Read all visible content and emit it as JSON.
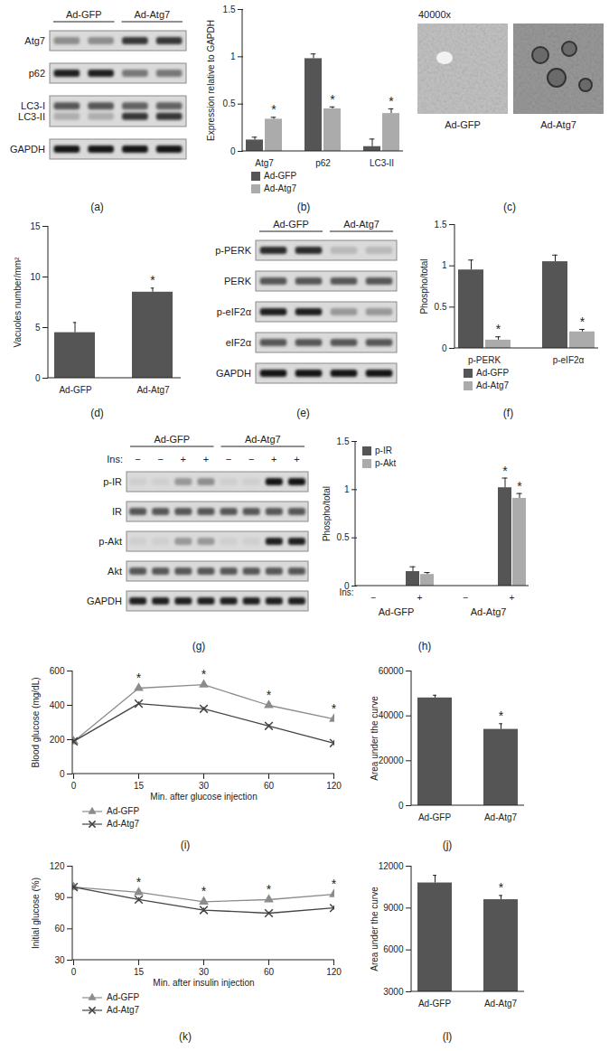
{
  "chart_data": [
    {
      "panel": "(b)",
      "type": "bar",
      "categories": [
        "Atg7",
        "p62",
        "LC3-II"
      ],
      "ylabel": "Expression relative to GAPDH",
      "ylim": [
        0,
        1.5
      ],
      "yticks": [
        0,
        0.5,
        1,
        1.5
      ],
      "legend": "bottom",
      "series": [
        {
          "name": "Ad-GFP",
          "color": "#555555",
          "values": [
            0.12,
            0.98,
            0.05
          ],
          "errors": [
            0.03,
            0.05,
            0.08
          ],
          "annotations": [
            null,
            null,
            null
          ]
        },
        {
          "name": "Ad-Atg7",
          "color": "#ababab",
          "values": [
            0.34,
            0.45,
            0.4
          ],
          "errors": [
            0.02,
            0.02,
            0.05
          ],
          "annotations": [
            "*",
            "*",
            "*"
          ]
        }
      ]
    },
    {
      "panel": "(d)",
      "type": "bar",
      "categories": [
        "Ad-GFP",
        "Ad-Atg7"
      ],
      "ylabel": "Vacuoles number/mm²",
      "ylim": [
        0,
        15
      ],
      "yticks": [
        0,
        5,
        10,
        15
      ],
      "color": "#555555",
      "values": [
        4.5,
        8.5
      ],
      "errors": [
        1.0,
        0.4
      ],
      "annotations": [
        null,
        "*"
      ]
    },
    {
      "panel": "(f)",
      "type": "bar",
      "categories": [
        "p-PERK",
        "p-eIF2α"
      ],
      "ylabel": "Phospho/total",
      "ylim": [
        0,
        1.5
      ],
      "yticks": [
        0,
        0.5,
        1,
        1.5
      ],
      "legend": "bottom",
      "series": [
        {
          "name": "Ad-GFP",
          "color": "#555555",
          "values": [
            0.95,
            1.05
          ],
          "errors": [
            0.12,
            0.08
          ],
          "annotations": [
            null,
            null
          ]
        },
        {
          "name": "Ad-Atg7",
          "color": "#ababab",
          "values": [
            0.1,
            0.2
          ],
          "errors": [
            0.04,
            0.03
          ],
          "annotations": [
            "*",
            "*"
          ]
        }
      ]
    },
    {
      "panel": "(h)",
      "type": "bar",
      "categories": [
        "−",
        "+",
        "−",
        "+"
      ],
      "xlabel": "Ins:",
      "groups": [
        "Ad-GFP",
        "Ad-Atg7"
      ],
      "ylabel": "Phospho/total",
      "ylim": [
        0,
        1.5
      ],
      "yticks": [
        0,
        0.5,
        1,
        1.5
      ],
      "legend": "top-left",
      "series": [
        {
          "name": "p-IR",
          "color": "#555555",
          "values": [
            0,
            0.15,
            0,
            1.02
          ],
          "errors": [
            0,
            0.05,
            0,
            0.1
          ],
          "annotations": [
            null,
            null,
            null,
            "*"
          ]
        },
        {
          "name": "p-Akt",
          "color": "#ababab",
          "values": [
            0,
            0.12,
            0,
            0.91
          ],
          "errors": [
            0,
            0.02,
            0,
            0.05
          ],
          "annotations": [
            null,
            null,
            null,
            "*"
          ]
        }
      ]
    },
    {
      "panel": "(i)",
      "type": "line",
      "categories": [
        "0",
        "15",
        "30",
        "60",
        "120"
      ],
      "xlabel": "Min. after glucose injection",
      "ylabel": "Blood glucose (mg/dL)",
      "ylim": [
        0,
        600
      ],
      "yticks": [
        0,
        200,
        400,
        600
      ],
      "legend": "bottom",
      "series": [
        {
          "name": "Ad-GFP",
          "color": "#8c8c8c",
          "marker": "triangle",
          "values": [
            190,
            500,
            520,
            400,
            320
          ],
          "errors": [
            8,
            12,
            10,
            12,
            14
          ],
          "annotations": [
            null,
            "*",
            "*",
            "*",
            "*"
          ]
        },
        {
          "name": "Ad-Atg7",
          "color": "#444444",
          "marker": "times",
          "values": [
            190,
            410,
            380,
            280,
            180
          ],
          "errors": [
            8,
            10,
            8,
            8,
            15
          ],
          "annotations": [
            null,
            null,
            null,
            null,
            null
          ]
        }
      ]
    },
    {
      "panel": "(j)",
      "type": "bar",
      "categories": [
        "Ad-GFP",
        "Ad-Atg7"
      ],
      "ylabel": "Area under the curve",
      "ylim": [
        0,
        60000
      ],
      "yticks": [
        0,
        20000,
        40000,
        60000
      ],
      "color": "#555555",
      "values": [
        48000,
        34000
      ],
      "errors": [
        1200,
        2500
      ],
      "annotations": [
        null,
        "*"
      ]
    },
    {
      "panel": "(k)",
      "type": "line",
      "categories": [
        "0",
        "15",
        "30",
        "60",
        "120"
      ],
      "xlabel": "Min. after insulin injection",
      "ylabel": "Initial glucose (%)",
      "ylim": [
        30,
        120
      ],
      "yticks": [
        30,
        60,
        90,
        120
      ],
      "legend": "bottom",
      "series": [
        {
          "name": "Ad-GFP",
          "color": "#8c8c8c",
          "marker": "triangle",
          "values": [
            100,
            95,
            86,
            88,
            93
          ],
          "errors": [
            1,
            2,
            2,
            2,
            2
          ],
          "annotations": [
            null,
            "*",
            "*",
            "*",
            "*"
          ]
        },
        {
          "name": "Ad-Atg7",
          "color": "#444444",
          "marker": "times",
          "values": [
            100,
            88,
            78,
            75,
            80
          ],
          "errors": [
            1,
            2,
            2,
            1,
            2
          ],
          "annotations": [
            null,
            null,
            null,
            null,
            null
          ]
        }
      ]
    },
    {
      "panel": "(l)",
      "type": "bar",
      "categories": [
        "Ad-GFP",
        "Ad-Atg7"
      ],
      "ylabel": "Area under the curve",
      "ylim": [
        3000,
        12000
      ],
      "yticks": [
        3000,
        6000,
        9000,
        12000
      ],
      "color": "#555555",
      "values": [
        10800,
        9600
      ],
      "errors": [
        550,
        300
      ],
      "annotations": [
        null,
        "*"
      ]
    }
  ],
  "blots": [
    {
      "panel": "(a)",
      "groups": [
        "Ad-GFP",
        "Ad-Atg7"
      ],
      "lanes_per_group": 2,
      "rows": [
        {
          "label": "Atg7",
          "bands": [
            0.35,
            0.35,
            0.75,
            0.75
          ]
        },
        {
          "label": "p62",
          "bands": [
            0.85,
            0.85,
            0.45,
            0.45
          ]
        },
        {
          "label": [
            "LC3-I",
            "LC3-II"
          ],
          "bands": [
            [
              0.6,
              0.6,
              0.55,
              0.55
            ],
            [
              0.2,
              0.2,
              0.75,
              0.75
            ]
          ]
        },
        {
          "label": "GAPDH",
          "bands": [
            0.9,
            0.9,
            0.9,
            0.9
          ]
        }
      ]
    },
    {
      "panel": "(e)",
      "groups": [
        "Ad-GFP",
        "Ad-Atg7"
      ],
      "lanes_per_group": 2,
      "rows": [
        {
          "label": "p-PERK",
          "bands": [
            0.8,
            0.8,
            0.15,
            0.15
          ]
        },
        {
          "label": "PERK",
          "bands": [
            0.6,
            0.6,
            0.6,
            0.6
          ]
        },
        {
          "label": "p-eIF2α",
          "bands": [
            0.85,
            0.85,
            0.3,
            0.3
          ]
        },
        {
          "label": "eIF2α",
          "bands": [
            0.6,
            0.6,
            0.6,
            0.6
          ]
        },
        {
          "label": "GAPDH",
          "bands": [
            0.9,
            0.9,
            0.9,
            0.9
          ]
        }
      ]
    },
    {
      "panel": "(g)",
      "groups": [
        "Ad-GFP",
        "Ad-Atg7"
      ],
      "lanes_per_group": 4,
      "lane_labels_title": "Ins:",
      "lane_labels": [
        "−",
        "−",
        "+",
        "+",
        "−",
        "−",
        "+",
        "+"
      ],
      "rows": [
        {
          "label": "p-IR",
          "bands": [
            0.05,
            0.05,
            0.3,
            0.35,
            0.05,
            0.05,
            0.9,
            0.9
          ]
        },
        {
          "label": "IR",
          "bands": [
            0.6,
            0.6,
            0.6,
            0.6,
            0.6,
            0.6,
            0.6,
            0.6
          ]
        },
        {
          "label": "p-Akt",
          "bands": [
            0.05,
            0.05,
            0.3,
            0.3,
            0.05,
            0.05,
            0.85,
            0.85
          ]
        },
        {
          "label": "Akt",
          "bands": [
            0.6,
            0.6,
            0.6,
            0.6,
            0.6,
            0.6,
            0.6,
            0.6
          ]
        },
        {
          "label": "GAPDH",
          "bands": [
            0.85,
            0.85,
            0.85,
            0.85,
            0.85,
            0.85,
            0.85,
            0.85
          ]
        }
      ]
    }
  ],
  "micrographs": {
    "panel": "(c)",
    "magnification": "40000x",
    "captions": [
      "Ad-GFP",
      "Ad-Atg7"
    ]
  }
}
